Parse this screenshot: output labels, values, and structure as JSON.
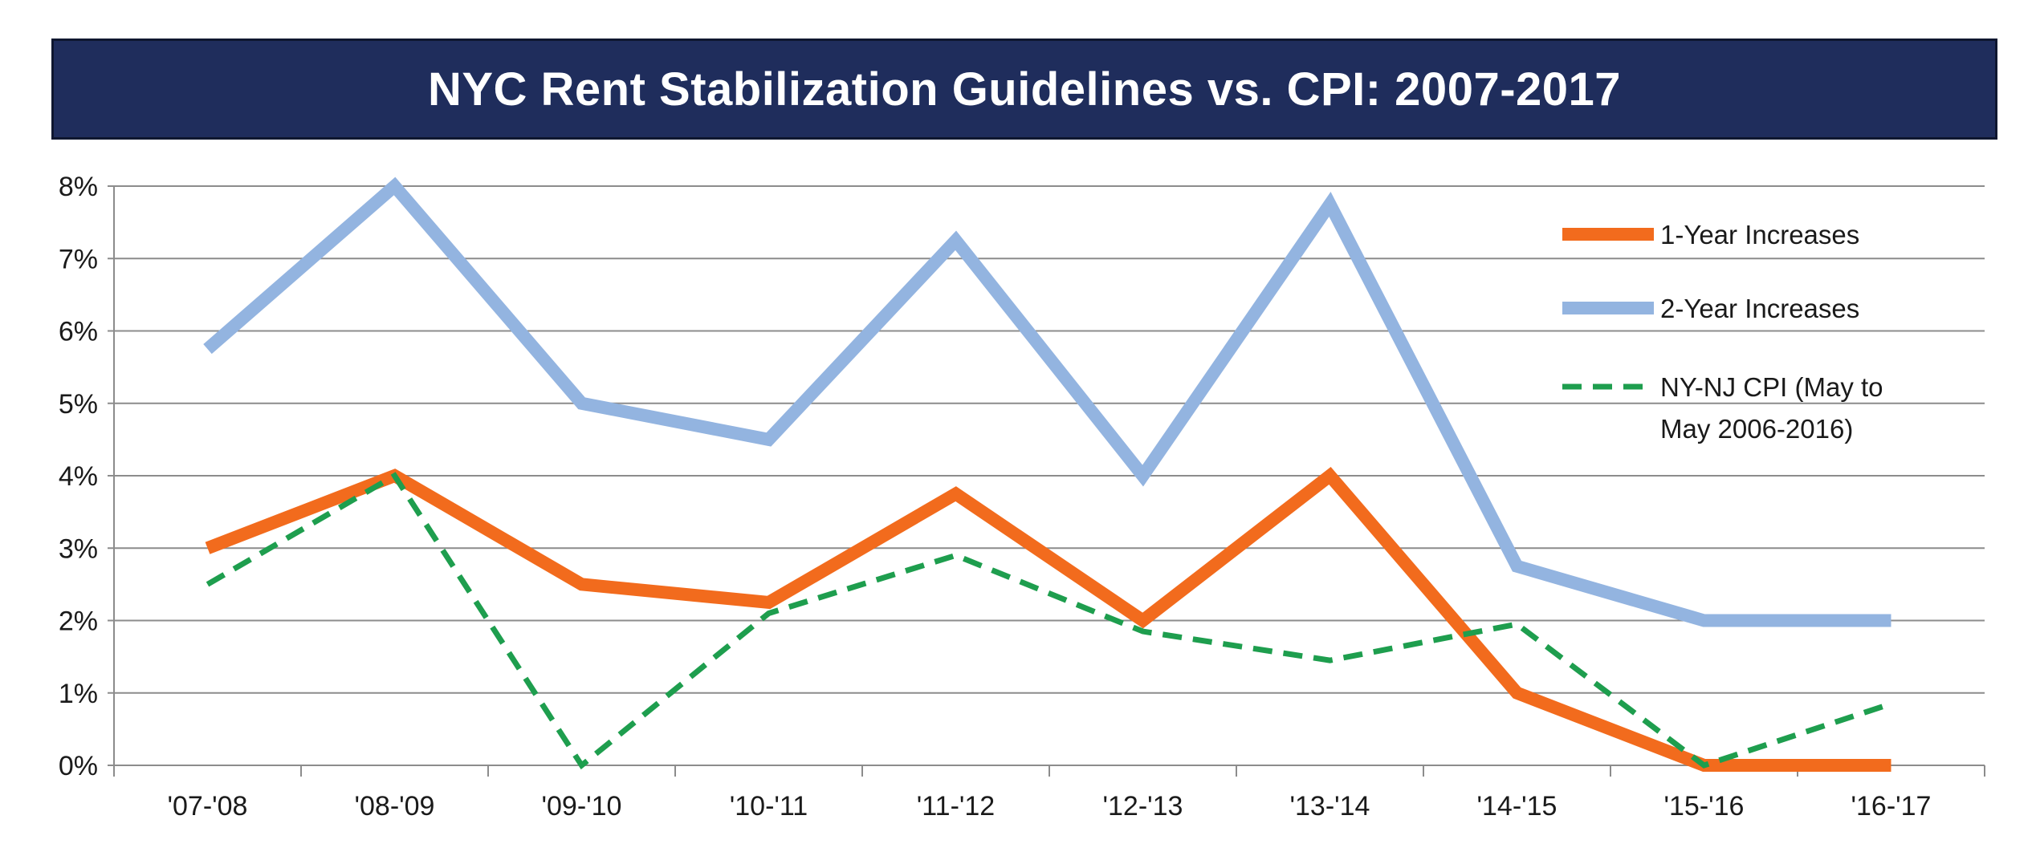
{
  "title": "NYC Rent Stabilization Guidelines vs. CPI: 2007-2017",
  "colors": {
    "title_background": "#1f2d5c",
    "one_year": "#f26b1d",
    "two_year": "#93b4e0",
    "cpi": "#1e9e4e",
    "grid": "#8c8c8c"
  },
  "chart_data": {
    "type": "line",
    "title": "NYC Rent Stabilization Guidelines vs. CPI: 2007-2017",
    "xlabel": "",
    "ylabel": "",
    "ylim": [
      0,
      8
    ],
    "y_tick_labels": [
      "0%",
      "1%",
      "2%",
      "3%",
      "4%",
      "5%",
      "6%",
      "7%",
      "8%"
    ],
    "categories": [
      "'07-'08",
      "'08-'09",
      "'09-'10",
      "'10-'11",
      "'11-'12",
      "'12-'13",
      "'13-'14",
      "'14-'15",
      "'15-'16",
      "'16-'17"
    ],
    "grid": "horizontal",
    "legend_position": "top-right",
    "series": [
      {
        "name": "1-Year Increases",
        "style": "solid-thick",
        "color": "#f26b1d",
        "values": [
          3.0,
          4.0,
          2.5,
          2.25,
          3.75,
          2.0,
          4.0,
          1.0,
          0.0,
          0.0
        ]
      },
      {
        "name": "2-Year Increases",
        "style": "solid-thick",
        "color": "#93b4e0",
        "values": [
          5.75,
          8.0,
          5.0,
          4.5,
          7.25,
          4.0,
          7.75,
          2.75,
          2.0,
          2.0
        ]
      },
      {
        "name": "NY-NJ CPI (May to May 2006-2016)",
        "legend_lines": [
          "NY-NJ CPI (May to",
          "May 2006-2016)"
        ],
        "style": "dashed",
        "color": "#1e9e4e",
        "values": [
          2.5,
          4.0,
          0.0,
          2.1,
          2.9,
          1.85,
          1.45,
          1.95,
          0.0,
          0.85
        ]
      }
    ]
  }
}
